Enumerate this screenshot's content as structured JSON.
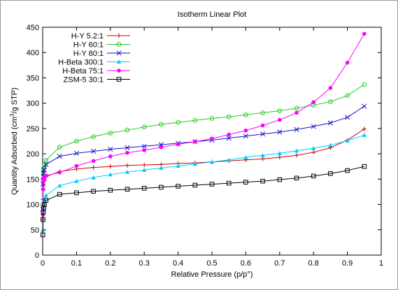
{
  "chart_data": {
    "type": "line",
    "title": "Isotherm Linear Plot",
    "xlabel": "Relative Pressure (p/p°)",
    "ylabel_main": "Quantity Adsorbed (cm",
    "ylabel_sup": "3",
    "ylabel_end": "/g STP)",
    "xlim": [
      0,
      1
    ],
    "ylim": [
      0,
      450
    ],
    "xticks": [
      0,
      0.1,
      0.2,
      0.3,
      0.4,
      0.5,
      0.6,
      0.7,
      0.8,
      0.9,
      1
    ],
    "xtick_labels": [
      "0",
      "0.1",
      "0.2",
      "0.3",
      "0.4",
      "0.5",
      "0.6",
      "0.7",
      "0.8",
      "0.9",
      "1"
    ],
    "yticks": [
      0,
      50,
      100,
      150,
      200,
      250,
      300,
      350,
      400,
      450
    ],
    "ytick_labels": [
      "0",
      "50",
      "100",
      "150",
      "200",
      "250",
      "300",
      "350",
      "400",
      "450"
    ],
    "grid": false,
    "legend_position": "top-left",
    "series": [
      {
        "name": "H-Y 5.2:1",
        "color": "#cc0000",
        "marker": "plus",
        "x": [
          0.0005,
          0.001,
          0.002,
          0.003,
          0.005,
          0.01,
          0.05,
          0.1,
          0.15,
          0.2,
          0.25,
          0.3,
          0.35,
          0.4,
          0.45,
          0.5,
          0.55,
          0.6,
          0.65,
          0.7,
          0.75,
          0.8,
          0.85,
          0.9,
          0.95
        ],
        "y": [
          70,
          110,
          130,
          140,
          147,
          155,
          165,
          170,
          173,
          175,
          177,
          178,
          179,
          181,
          182,
          184,
          186,
          188,
          190,
          193,
          197,
          203,
          212,
          227,
          249
        ]
      },
      {
        "name": "H-Y 60:1",
        "color": "#22cc22",
        "marker": "circle",
        "x": [
          0.0005,
          0.001,
          0.002,
          0.003,
          0.005,
          0.01,
          0.05,
          0.1,
          0.15,
          0.2,
          0.25,
          0.3,
          0.35,
          0.4,
          0.45,
          0.5,
          0.55,
          0.6,
          0.65,
          0.7,
          0.75,
          0.8,
          0.85,
          0.9,
          0.95
        ],
        "y": [
          100,
          150,
          165,
          172,
          178,
          187,
          213,
          225,
          234,
          241,
          247,
          253,
          258,
          262,
          266,
          270,
          273,
          277,
          281,
          285,
          290,
          296,
          303,
          315,
          337
        ]
      },
      {
        "name": "H-Y 80:1",
        "color": "#1111cc",
        "marker": "x",
        "x": [
          0.0005,
          0.001,
          0.002,
          0.003,
          0.005,
          0.01,
          0.05,
          0.1,
          0.15,
          0.2,
          0.25,
          0.3,
          0.35,
          0.4,
          0.45,
          0.5,
          0.55,
          0.6,
          0.65,
          0.7,
          0.75,
          0.8,
          0.85,
          0.9,
          0.95
        ],
        "y": [
          90,
          140,
          155,
          162,
          168,
          179,
          195,
          201,
          205,
          209,
          212,
          215,
          218,
          221,
          224,
          227,
          231,
          235,
          239,
          243,
          248,
          254,
          261,
          272,
          294
        ]
      },
      {
        "name": "H-Beta 300:1",
        "color": "#00ccff",
        "marker": "triangle",
        "x": [
          0.0005,
          0.001,
          0.002,
          0.003,
          0.005,
          0.01,
          0.05,
          0.1,
          0.15,
          0.2,
          0.25,
          0.3,
          0.35,
          0.4,
          0.45,
          0.5,
          0.55,
          0.6,
          0.65,
          0.7,
          0.75,
          0.8,
          0.85,
          0.9,
          0.95
        ],
        "y": [
          50,
          80,
          95,
          103,
          110,
          118,
          137,
          146,
          153,
          159,
          164,
          168,
          172,
          176,
          180,
          184,
          188,
          193,
          197,
          201,
          206,
          211,
          217,
          226,
          237
        ]
      },
      {
        "name": "H-Beta 75:1",
        "color": "#ff00ff",
        "marker": "dot",
        "x": [
          0.0005,
          0.001,
          0.002,
          0.003,
          0.005,
          0.01,
          0.05,
          0.1,
          0.15,
          0.2,
          0.25,
          0.3,
          0.35,
          0.4,
          0.45,
          0.5,
          0.55,
          0.6,
          0.65,
          0.7,
          0.75,
          0.8,
          0.85,
          0.9,
          0.95
        ],
        "y": [
          80,
          130,
          145,
          150,
          153,
          157,
          163,
          176,
          186,
          195,
          202,
          207,
          213,
          219,
          224,
          230,
          238,
          246,
          256,
          267,
          281,
          302,
          330,
          380,
          437
        ]
      },
      {
        "name": "ZSM-5 30:1",
        "color": "#000000",
        "marker": "square",
        "x": [
          0.0005,
          0.001,
          0.002,
          0.003,
          0.005,
          0.01,
          0.05,
          0.1,
          0.15,
          0.2,
          0.25,
          0.3,
          0.35,
          0.4,
          0.45,
          0.5,
          0.55,
          0.6,
          0.65,
          0.7,
          0.75,
          0.8,
          0.85,
          0.9,
          0.95
        ],
        "y": [
          40,
          70,
          85,
          93,
          100,
          108,
          120,
          123,
          126,
          128,
          130,
          132,
          134,
          136,
          138,
          140,
          142,
          144,
          146,
          149,
          152,
          156,
          161,
          167,
          175
        ]
      }
    ]
  }
}
